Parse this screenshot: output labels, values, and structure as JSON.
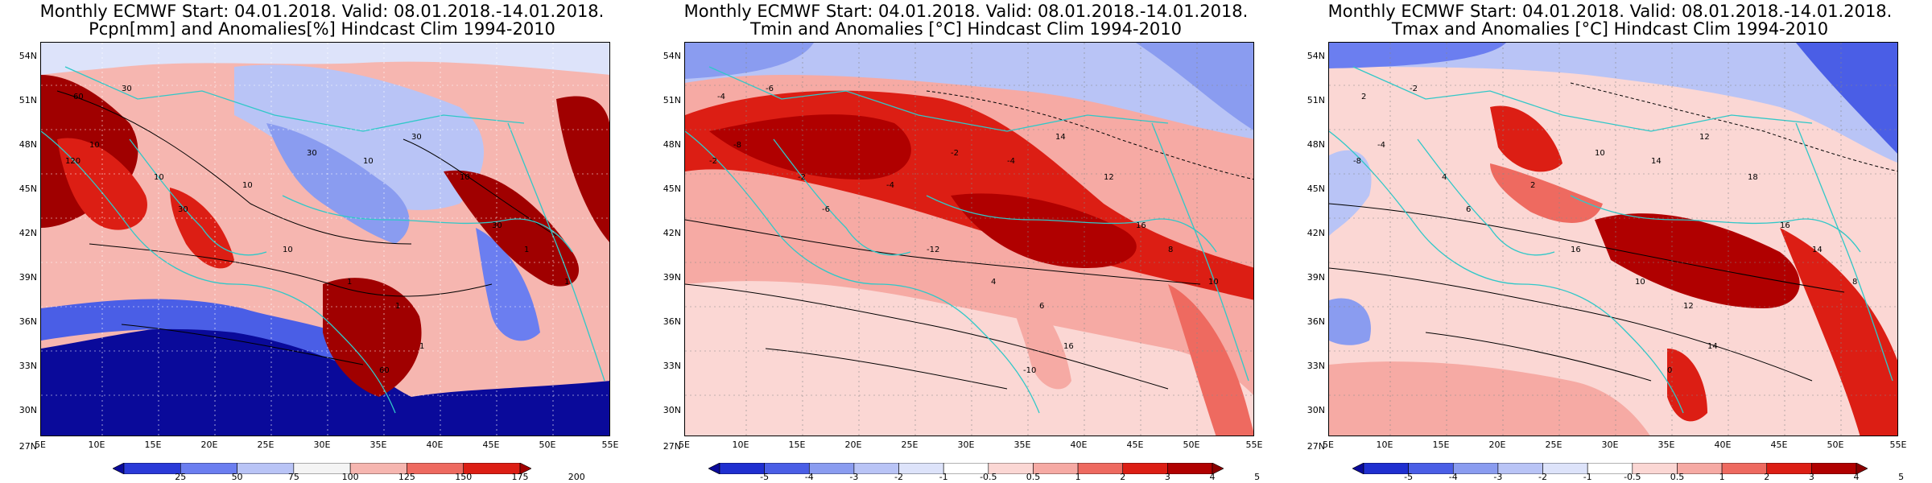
{
  "panels": [
    {
      "title_line1": "Monthly ECMWF Start: 04.01.2018. Valid: 08.01.2018.-14.01.2018.",
      "title_line2": "Pcpn[mm] and Anomalies[%] Hindcast Clim 1994-2010",
      "colorbar_labels": [
        "25",
        "50",
        "75",
        "100",
        "125",
        "150",
        "175",
        "200"
      ],
      "colorbar_colors": [
        "#0a0a9a",
        "#2a3ad8",
        "#6b7ef0",
        "#b9c4f6",
        "#f4f4f4",
        "#f6b6b0",
        "#ee6a60",
        "#dc1e14",
        "#a00000"
      ],
      "contour_labels": [
        "60",
        "30",
        "10",
        "120",
        "10",
        "30",
        "10",
        "30",
        "10",
        "30",
        "10",
        "30",
        "1",
        "1",
        "1",
        "1",
        "1",
        "10",
        "60"
      ]
    },
    {
      "title_line1": "Monthly ECMWF Start: 04.01.2018. Valid: 08.01.2018.-14.01.2018.",
      "title_line2": "Tmin and Anomalies [°C] Hindcast Clim 1994-2010",
      "colorbar_labels": [
        "-5",
        "-4",
        "-3",
        "-2",
        "-1",
        "-0.5",
        "0.5",
        "1",
        "2",
        "3",
        "4",
        "5"
      ],
      "colorbar_colors": [
        "#0a0a9a",
        "#1f2fd0",
        "#4a5ee6",
        "#8a9cf0",
        "#b9c4f6",
        "#dde3fa",
        "#ffffff",
        "#fbd7d4",
        "#f6aaa4",
        "#ee6a60",
        "#dc1e14",
        "#b00000",
        "#8a0000"
      ],
      "contour_labels": [
        "-4",
        "-6",
        "-8",
        "-2",
        "-2",
        "-6",
        "-4",
        "-2",
        "-4",
        "14",
        "12",
        "16",
        "8",
        "10",
        "4",
        "6",
        "16",
        "-12",
        "-10"
      ]
    },
    {
      "title_line1": "Monthly ECMWF Start: 04.01.2018. Valid: 08.01.2018.-14.01.2018.",
      "title_line2": "Tmax and Anomalies [°C] Hindcast Clim 1994-2010",
      "colorbar_labels": [
        "-5",
        "-4",
        "-3",
        "-2",
        "-1",
        "-0.5",
        "0.5",
        "1",
        "2",
        "3",
        "4",
        "5"
      ],
      "colorbar_colors": [
        "#0a0a9a",
        "#1f2fd0",
        "#4a5ee6",
        "#8a9cf0",
        "#b9c4f6",
        "#dde3fa",
        "#ffffff",
        "#fbd7d4",
        "#f6aaa4",
        "#ee6a60",
        "#dc1e14",
        "#b00000",
        "#8a0000"
      ],
      "contour_labels": [
        "2",
        "-2",
        "-4",
        "-8",
        "4",
        "6",
        "2",
        "10",
        "14",
        "12",
        "18",
        "16",
        "14",
        "8",
        "10",
        "12",
        "14",
        "16",
        "0"
      ]
    }
  ],
  "lat_labels": [
    "54N",
    "51N",
    "48N",
    "45N",
    "42N",
    "39N",
    "36N",
    "33N",
    "30N",
    "27N"
  ],
  "lon_labels": [
    "5E",
    "10E",
    "15E",
    "20E",
    "25E",
    "30E",
    "35E",
    "40E",
    "45E",
    "50E",
    "55E"
  ]
}
